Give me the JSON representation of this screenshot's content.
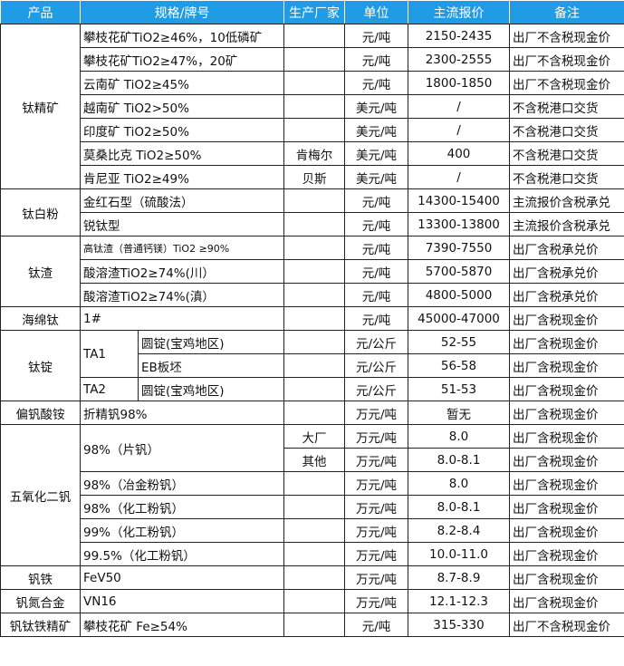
{
  "header": {
    "product": "产品",
    "spec": "规格/牌号",
    "producer": "生产厂家",
    "unit": "单位",
    "price": "主流报价",
    "note": "备注"
  },
  "colors": {
    "header_bg": "#1f9ce3",
    "header_text": "#ffffff",
    "border": "#222222"
  },
  "groups": [
    {
      "product": "钛精矿",
      "rows": [
        {
          "spec": "攀枝花矿TiO2≥46%，10低磷矿",
          "producer": "",
          "unit": "元/吨",
          "price": "2150-2435",
          "note": "出厂不含税现金价"
        },
        {
          "spec": "攀枝花矿TiO2≥47%，20矿",
          "producer": "",
          "unit": "元/吨",
          "price": "2300-2555",
          "note": "出厂不含税现金价"
        },
        {
          "spec": "云南矿 TiO2≥45%",
          "producer": "",
          "unit": "元/吨",
          "price": "1800-1850",
          "note": "出厂不含税现金价"
        },
        {
          "spec": "越南矿 TiO2>50%",
          "producer": "",
          "unit": "美元/吨",
          "price": "/",
          "note": "不含税港口交货"
        },
        {
          "spec": "印度矿 TiO2≥50%",
          "producer": "",
          "unit": "美元/吨",
          "price": "/",
          "note": "不含税港口交货"
        },
        {
          "spec": "莫桑比克 TiO2≥50%",
          "producer": "肯梅尔",
          "unit": "美元/吨",
          "price": "400",
          "note": "不含税港口交货"
        },
        {
          "spec": "肯尼亚 TiO2≥49%",
          "producer": "贝斯",
          "unit": "美元/吨",
          "price": "/",
          "note": "不含税港口交货"
        }
      ]
    },
    {
      "product": "钛白粉",
      "rows": [
        {
          "spec": "金红石型（硫酸法）",
          "producer": "",
          "unit": "元/吨",
          "price": "14300-15400",
          "note": "主流报价含税承兑"
        },
        {
          "spec": "锐钛型",
          "producer": "",
          "unit": "元/吨",
          "price": "13300-13800",
          "note": "主流报价含税承兑"
        }
      ]
    },
    {
      "product": "钛渣",
      "rows": [
        {
          "spec": "高钛渣（普通钙镁）TiO2 ≥90%",
          "small": true,
          "producer": "",
          "unit": "元/吨",
          "price": "7390-7550",
          "note": "出厂含税承兑价"
        },
        {
          "spec": "酸溶渣TiO2≥74%(川）",
          "producer": "",
          "unit": "元/吨",
          "price": "5700-5870",
          "note": "出厂含税承兑价"
        },
        {
          "spec": "酸溶渣TiO2≥74%(滇）",
          "producer": "",
          "unit": "元/吨",
          "price": "4800-5000",
          "note": "出厂含税承兑价"
        }
      ]
    },
    {
      "product": "海绵钛",
      "rows": [
        {
          "spec": "1#",
          "producer": "",
          "unit": "元/吨",
          "price": "45000-47000",
          "note": "出厂含税现金价"
        }
      ]
    },
    {
      "product": "钛锭",
      "rows": [
        {
          "spec": "TA1",
          "sub": [
            {
              "form": "圆锭(宝鸡地区)",
              "producer": "",
              "unit": "元/公斤",
              "price": "52-55",
              "note": "出厂含税现金价"
            },
            {
              "form": "EB板坯",
              "producer": "",
              "unit": "元/公斤",
              "price": "56-58",
              "note": "出厂含税现金价"
            }
          ]
        },
        {
          "spec": "TA2",
          "sub": [
            {
              "form": "圆锭(宝鸡地区)",
              "producer": "",
              "unit": "元/公斤",
              "price": "51-53",
              "note": "出厂含税现金价"
            }
          ]
        }
      ]
    },
    {
      "product": "偏钒酸铵",
      "rows": [
        {
          "spec": "折精钒98%",
          "producer": "",
          "unit": "万元/吨",
          "price": "暂无",
          "note": "出厂含税现金价"
        }
      ]
    },
    {
      "product": "五氧化二钒",
      "rows": [
        {
          "spec": "98%（片钒）",
          "sub": [
            {
              "producer": "大厂",
              "unit": "万元/吨",
              "price": "8.0",
              "note": "出厂含税现金价"
            },
            {
              "producer": "其他",
              "unit": "万元/吨",
              "price": "8.0-8.1",
              "note": "出厂含税现金价"
            }
          ]
        },
        {
          "spec": "98%（冶金粉钒）",
          "producer": "",
          "unit": "万元/吨",
          "price": "8.0",
          "note": "出厂含税现金价"
        },
        {
          "spec": "98%（化工粉钒）",
          "producer": "",
          "unit": "万元/吨",
          "price": "8.0-8.1",
          "note": "出厂含税现金价"
        },
        {
          "spec": "99%（化工粉钒）",
          "producer": "",
          "unit": "万元/吨",
          "price": "8.2-8.4",
          "note": "出厂含税现金价"
        },
        {
          "spec": "99.5%（化工粉钒）",
          "producer": "",
          "unit": "万元/吨",
          "price": "10.0-11.0",
          "note": "出厂含税现金价"
        }
      ]
    },
    {
      "product": "钒铁",
      "rows": [
        {
          "spec": "FeV50",
          "producer": "",
          "unit": "万元/吨",
          "price": "8.7-8.9",
          "note": "出厂含税现金价"
        }
      ]
    },
    {
      "product": "钒氮合金",
      "rows": [
        {
          "spec": "VN16",
          "producer": "",
          "unit": "万元/吨",
          "price": "12.1-12.3",
          "note": "出厂含税现金价"
        }
      ]
    },
    {
      "product": "钒钛铁精矿",
      "rows": [
        {
          "spec": "攀枝花矿 Fe≥54%",
          "producer": "",
          "unit": "元/吨",
          "price": "315-330",
          "note": "出厂不含税现金价"
        }
      ]
    }
  ]
}
